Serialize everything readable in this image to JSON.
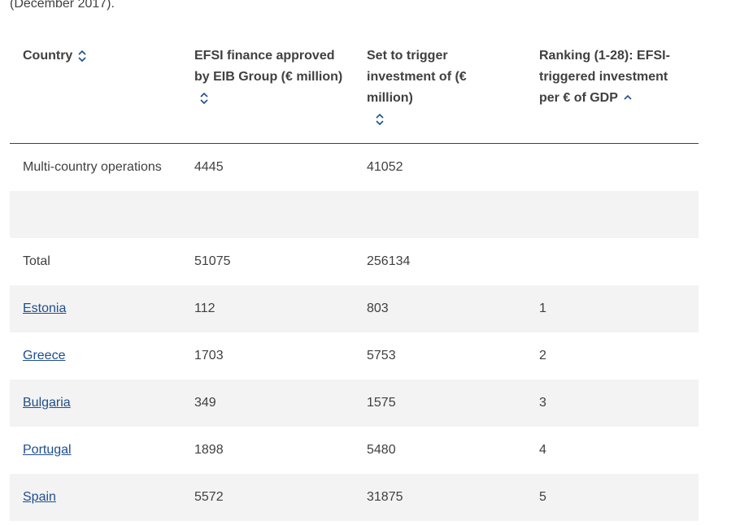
{
  "caption": "(December 2017).",
  "table": {
    "headers": {
      "country": "Country",
      "efsi_finance": "EFSI finance approved by EIB Group (€ million)",
      "trigger": "Set to trigger investment of (€ million)",
      "ranking": "Ranking (1-28): EFSI-triggered investment per € of GDP"
    },
    "rows": [
      {
        "country": "Multi-country operations",
        "efsi": "4445",
        "trigger": "41052",
        "rank": ""
      },
      {
        "country": "",
        "efsi": "",
        "trigger": "",
        "rank": ""
      },
      {
        "country": "Total",
        "efsi": "51075",
        "trigger": "256134",
        "rank": ""
      },
      {
        "country": "Estonia",
        "efsi": "112",
        "trigger": "803",
        "rank": "1"
      },
      {
        "country": "Greece",
        "efsi": "1703",
        "trigger": "5753",
        "rank": "2"
      },
      {
        "country": "Bulgaria",
        "efsi": "349",
        "trigger": "1575",
        "rank": "3"
      },
      {
        "country": "Portugal",
        "efsi": "1898",
        "trigger": "5480",
        "rank": "4"
      },
      {
        "country": "Spain",
        "efsi": "5572",
        "trigger": "31875",
        "rank": "5"
      }
    ]
  },
  "icons": {
    "sort_both": "sort-both-icon",
    "sort_asc": "sort-ascending-icon"
  },
  "colors": {
    "text": "#404040",
    "link": "#1f4e8c",
    "row_alt": "#f3f3f3",
    "divider": "#404040"
  }
}
